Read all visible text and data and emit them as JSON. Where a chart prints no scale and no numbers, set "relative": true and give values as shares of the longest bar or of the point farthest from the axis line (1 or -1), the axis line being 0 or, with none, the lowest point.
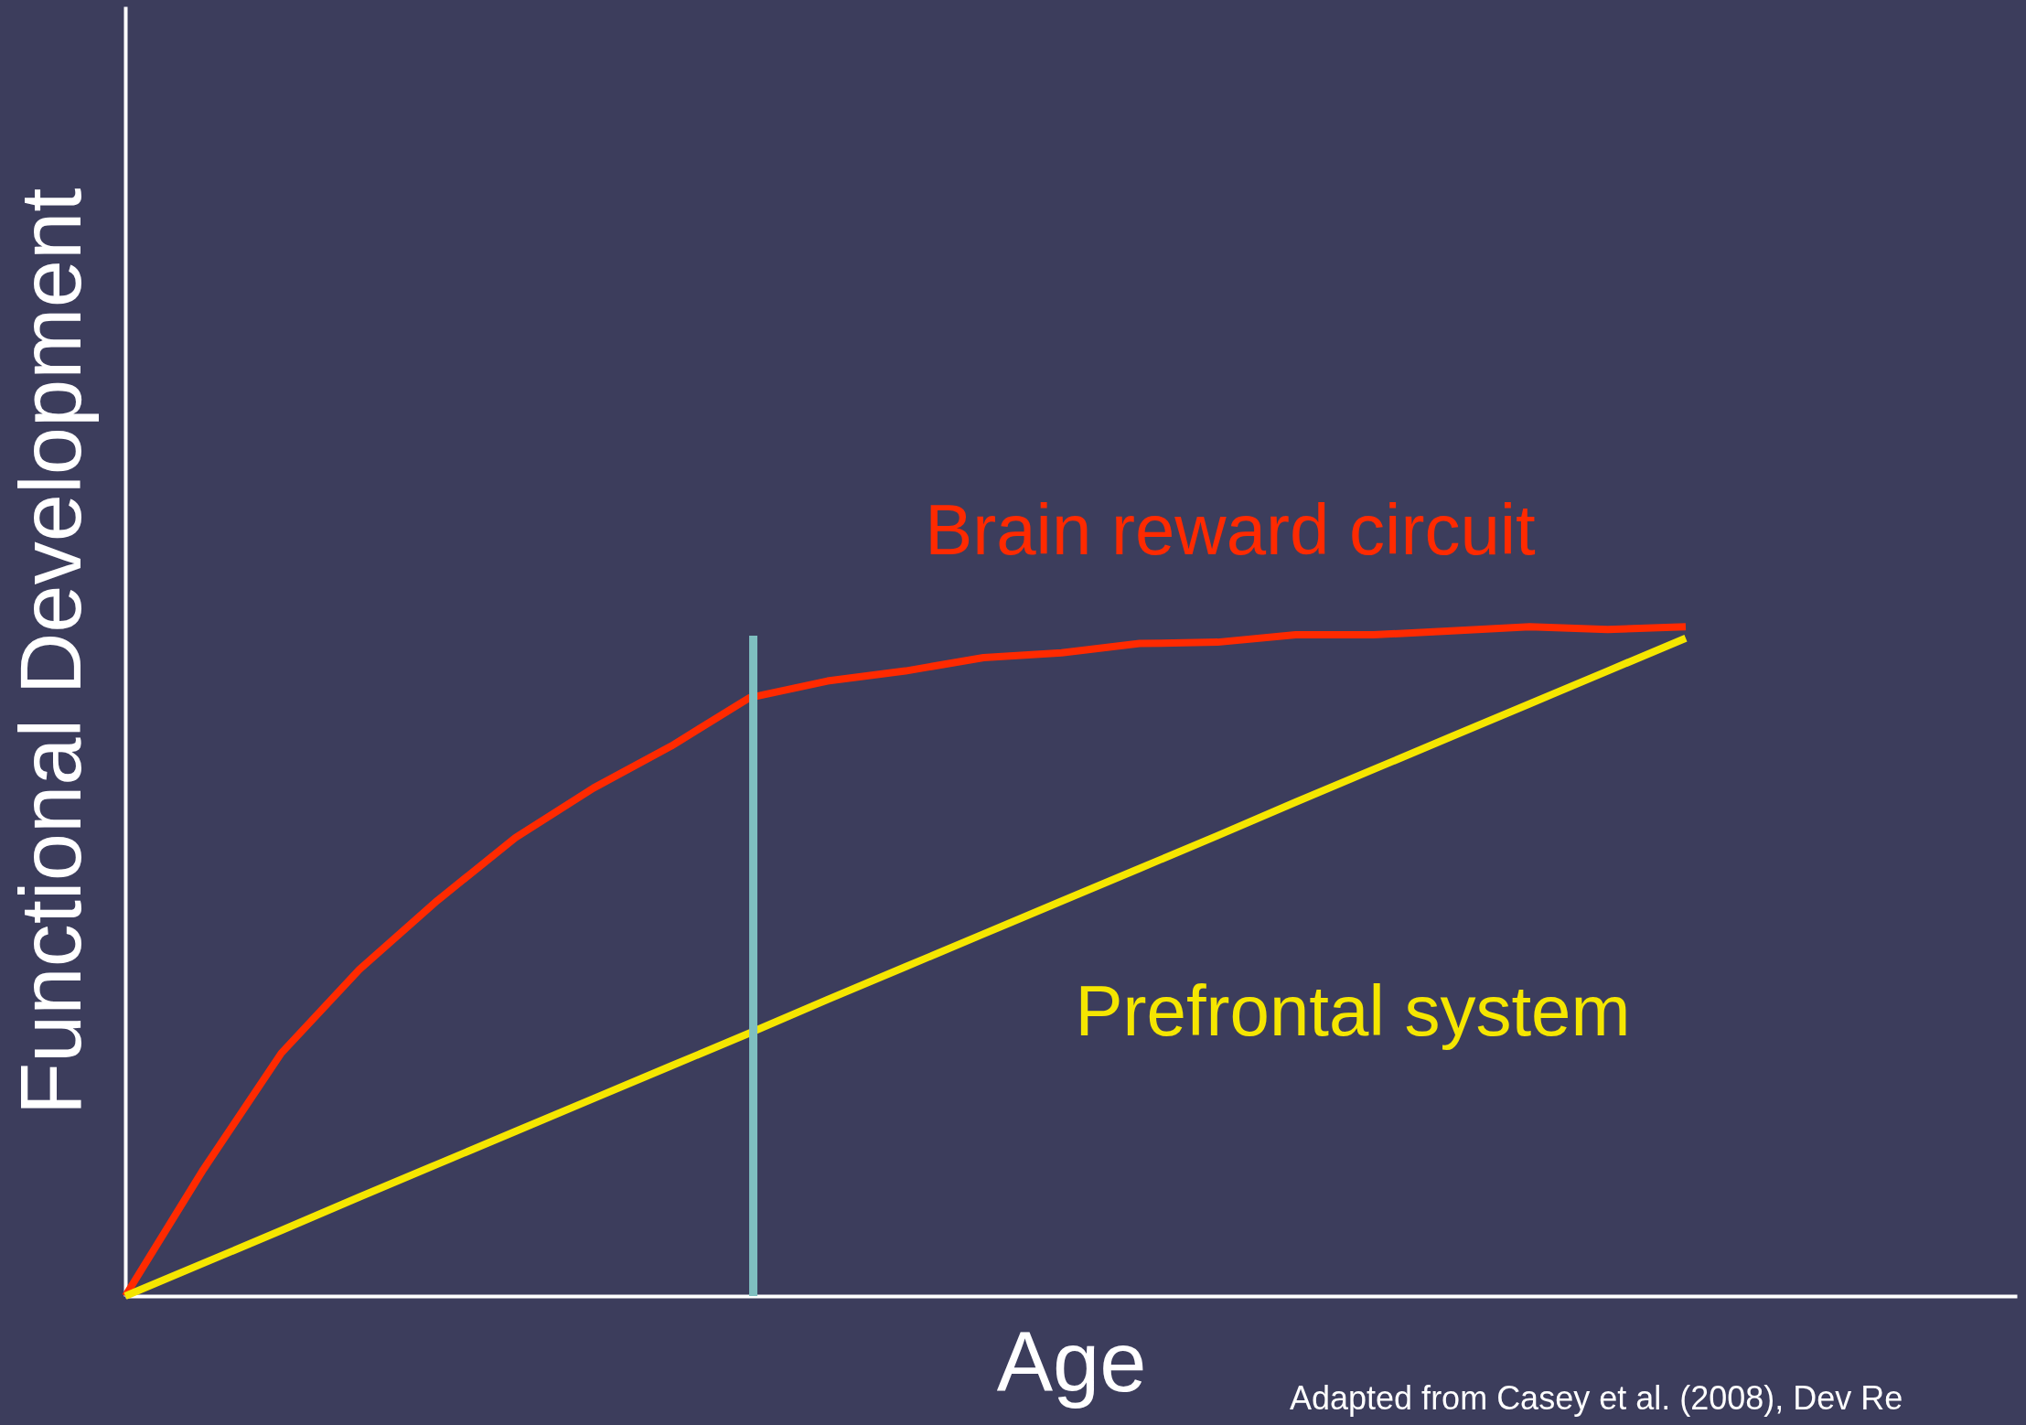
{
  "chart_data": {
    "type": "line",
    "relative": true,
    "xlabel": "Age",
    "ylabel": "Functional Development",
    "categories": [
      null,
      null,
      null,
      null,
      null,
      null,
      null,
      null,
      null,
      null,
      null,
      null,
      null,
      null,
      null,
      null,
      null,
      null,
      null,
      null,
      null
    ],
    "series": [
      {
        "name": "Brain reward circuit",
        "color": "#ff2a00",
        "values": [
          0,
          0.189,
          0.363,
          0.488,
          0.591,
          0.685,
          0.759,
          0.822,
          0.894,
          0.919,
          0.934,
          0.954,
          0.961,
          0.975,
          0.977,
          0.988,
          0.988,
          0.994,
          1.0,
          0.996,
          1.0
        ]
      },
      {
        "name": "Prefrontal system",
        "color": "#f5e600",
        "values": [
          0,
          0.049,
          0.098,
          0.148,
          0.197,
          0.246,
          0.295,
          0.344,
          0.393,
          0.443,
          0.492,
          0.541,
          0.59,
          0.639,
          0.688,
          0.738,
          0.787,
          0.836,
          0.885,
          0.934,
          0.983
        ]
      }
    ],
    "annotations": [
      "Adapted from Casey et al. (2008), Dev Re"
    ],
    "line_style": "solid"
  }
}
